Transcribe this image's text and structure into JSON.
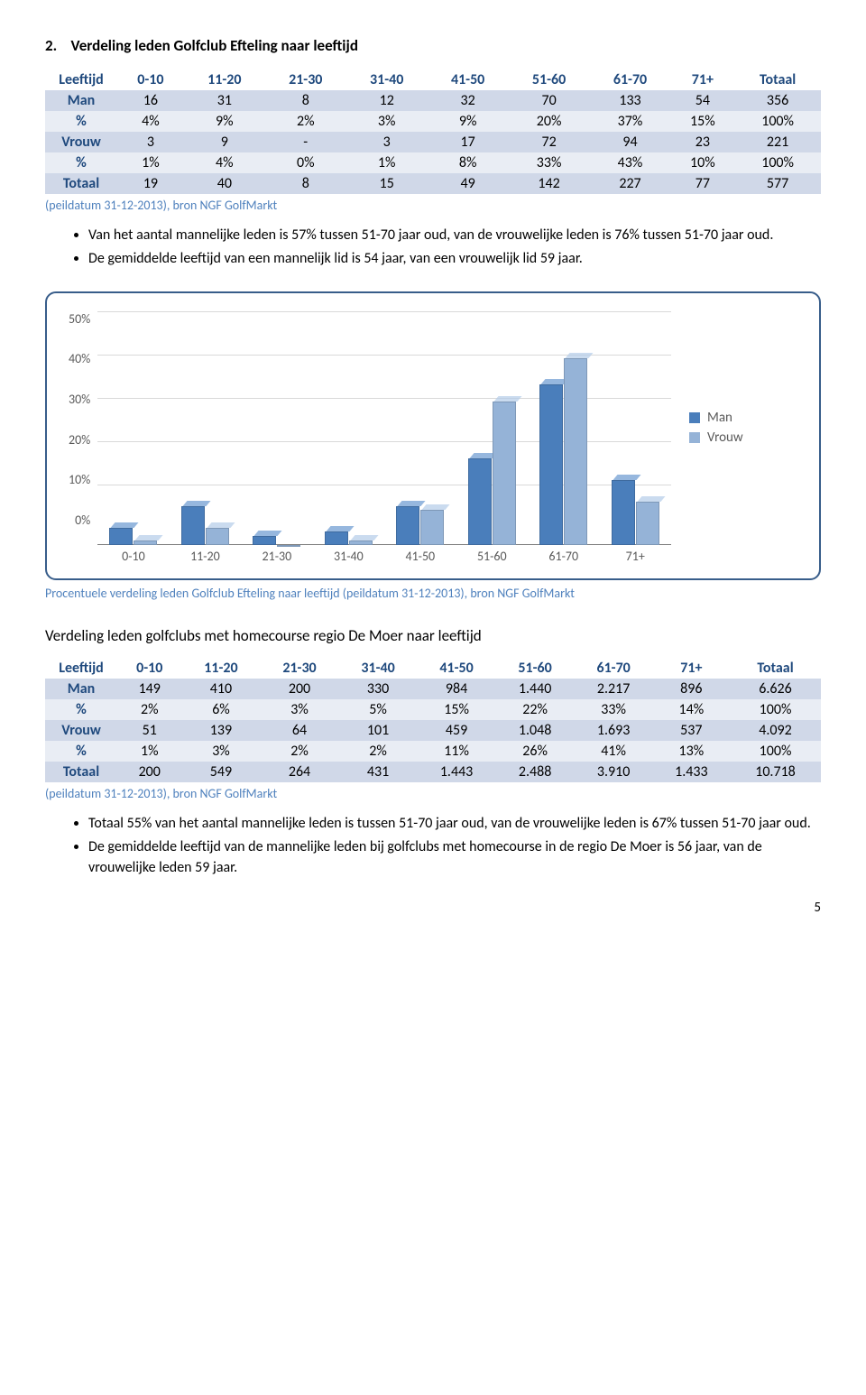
{
  "section": {
    "number": "2.",
    "title": "Verdeling leden Golfclub Efteling naar leeftijd"
  },
  "table1": {
    "headers": [
      "Leeftijd",
      "0-10",
      "11-20",
      "21-30",
      "31-40",
      "41-50",
      "51-60",
      "61-70",
      "71+",
      "Totaal"
    ],
    "rows": [
      {
        "label": "Man",
        "cells": [
          "16",
          "31",
          "8",
          "12",
          "32",
          "70",
          "133",
          "54",
          "356"
        ]
      },
      {
        "label": "%",
        "cells": [
          "4%",
          "9%",
          "2%",
          "3%",
          "9%",
          "20%",
          "37%",
          "15%",
          "100%"
        ]
      },
      {
        "label": "Vrouw",
        "cells": [
          "3",
          "9",
          "-",
          "3",
          "17",
          "72",
          "94",
          "23",
          "221"
        ]
      },
      {
        "label": "%",
        "cells": [
          "1%",
          "4%",
          "0%",
          "1%",
          "8%",
          "33%",
          "43%",
          "10%",
          "100%"
        ]
      },
      {
        "label": "Totaal",
        "cells": [
          "19",
          "40",
          "8",
          "15",
          "49",
          "142",
          "227",
          "77",
          "577"
        ]
      }
    ],
    "source": "(peildatum 31-12-2013), bron NGF GolfMarkt"
  },
  "bullets1": [
    "Van het aantal mannelijke leden is 57% tussen 51-70 jaar oud, van de vrouwelijke leden is 76% tussen 51-70 jaar oud.",
    "De gemiddelde leeftijd van een mannelijk lid is 54 jaar, van een vrouwelijk lid 59 jaar."
  ],
  "chart": {
    "type": "bar",
    "categories": [
      "0-10",
      "11-20",
      "21-30",
      "31-40",
      "41-50",
      "51-60",
      "61-70",
      "71+"
    ],
    "series": [
      {
        "name": "Man",
        "color": "#4a7ebb",
        "color_top": "#6a98d0",
        "values": [
          4,
          9,
          2,
          3,
          9,
          20,
          37,
          15
        ]
      },
      {
        "name": "Vrouw",
        "color": "#95b3d7",
        "color_top": "#b4cce8",
        "values": [
          1,
          4,
          0,
          1,
          8,
          33,
          43,
          10
        ]
      }
    ],
    "y_ticks": [
      "50%",
      "40%",
      "30%",
      "20%",
      "10%",
      "0%"
    ],
    "y_max": 50,
    "grid_color": "#d9d9d9",
    "source": "Procentuele verdeling leden Golfclub Efteling naar leeftijd (peildatum 31-12-2013), bron NGF GolfMarkt"
  },
  "subheading": "Verdeling leden golfclubs met homecourse regio De Moer naar leeftijd",
  "table2": {
    "headers": [
      "Leeftijd",
      "0-10",
      "11-20",
      "21-30",
      "31-40",
      "41-50",
      "51-60",
      "61-70",
      "71+",
      "Totaal"
    ],
    "rows": [
      {
        "label": "Man",
        "cells": [
          "149",
          "410",
          "200",
          "330",
          "984",
          "1.440",
          "2.217",
          "896",
          "6.626"
        ]
      },
      {
        "label": "%",
        "cells": [
          "2%",
          "6%",
          "3%",
          "5%",
          "15%",
          "22%",
          "33%",
          "14%",
          "100%"
        ]
      },
      {
        "label": "Vrouw",
        "cells": [
          "51",
          "139",
          "64",
          "101",
          "459",
          "1.048",
          "1.693",
          "537",
          "4.092"
        ]
      },
      {
        "label": "%",
        "cells": [
          "1%",
          "3%",
          "2%",
          "2%",
          "11%",
          "26%",
          "41%",
          "13%",
          "100%"
        ]
      },
      {
        "label": "Totaal",
        "cells": [
          "200",
          "549",
          "264",
          "431",
          "1.443",
          "2.488",
          "3.910",
          "1.433",
          "10.718"
        ]
      }
    ],
    "source": "(peildatum 31-12-2013), bron NGF GolfMarkt"
  },
  "bullets2": [
    "Totaal 55% van het aantal mannelijke leden is tussen 51-70 jaar oud, van de vrouwelijke leden is 67% tussen 51-70 jaar oud.",
    "De gemiddelde leeftijd van de mannelijke leden bij golfclubs met homecourse in de regio De Moer is 56 jaar, van de vrouwelijke leden 59 jaar."
  ],
  "page_number": "5",
  "colors": {
    "header_text": "#1f497d",
    "row_odd": "#d0d8e8",
    "row_even": "#e9edf4",
    "link_blue": "#4f81bd"
  }
}
